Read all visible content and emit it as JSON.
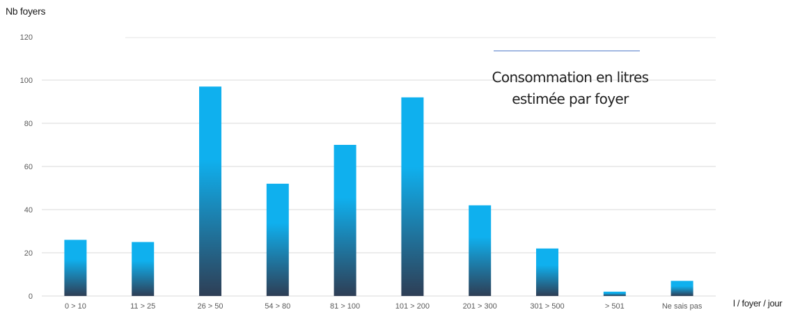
{
  "chart_data": {
    "type": "bar",
    "title": "Consommation en litres\nestimée par foyer",
    "ylabel": "Nb foyers",
    "xlabel": "l / foyer / jour",
    "categories": [
      "0 > 10",
      "11 > 25",
      "26 > 50",
      "54 > 80",
      "81 > 100",
      "101 > 200",
      "201 > 300",
      "301 > 500",
      "> 501",
      "Ne sais pas"
    ],
    "values": [
      26,
      25,
      97,
      52,
      70,
      92,
      42,
      22,
      2,
      7
    ],
    "ylim": [
      0,
      120
    ],
    "yticks": [
      0,
      20,
      40,
      60,
      80,
      100,
      120
    ],
    "grid": true,
    "colors": {
      "bar_top": "#0fb0ee",
      "bar_bottom": "#2e3e55",
      "grid": "#d9d9d9",
      "title_rule": "#4472c4"
    }
  }
}
